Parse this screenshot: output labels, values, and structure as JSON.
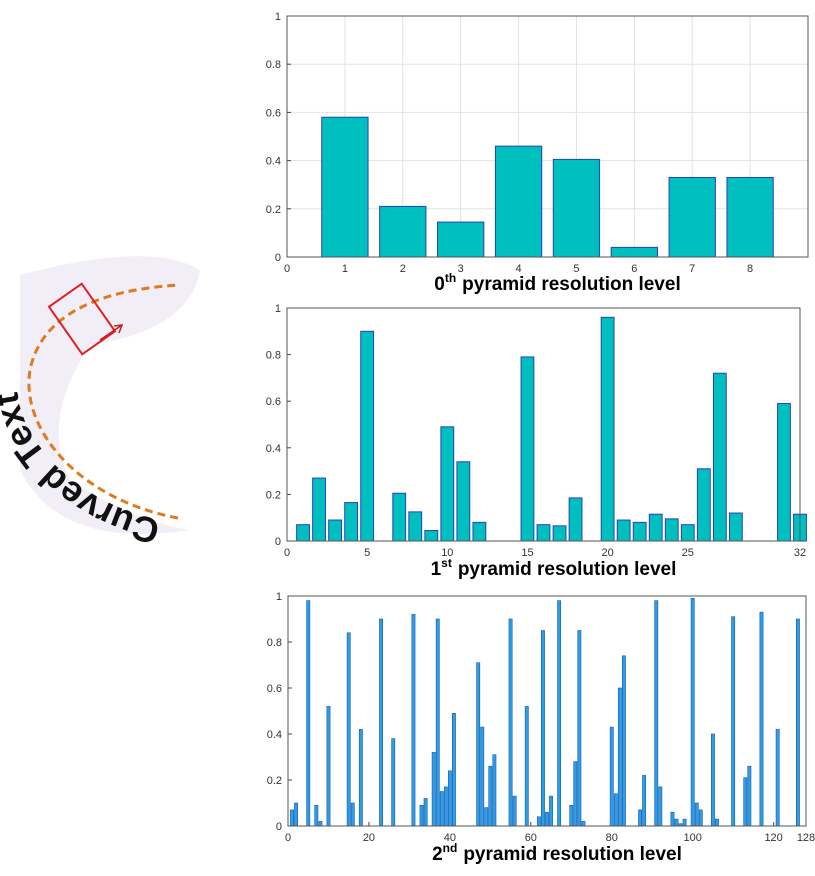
{
  "illustration": {
    "text": "Curved Text"
  },
  "chart_data": [
    {
      "type": "bar",
      "title_level": "0",
      "title_suffix": "th",
      "title": "pyramid resolution level",
      "x": [
        1,
        2,
        3,
        4,
        5,
        6,
        7,
        8
      ],
      "values": [
        0.58,
        0.21,
        0.145,
        0.46,
        0.405,
        0.04,
        0.33,
        0.33
      ],
      "color": "#00bfbf",
      "edgecolor": "#2b3fbf",
      "xlim": [
        0,
        9
      ],
      "xticks": [
        0,
        1,
        2,
        3,
        4,
        5,
        6,
        7,
        8
      ],
      "ylim": [
        0,
        1
      ],
      "yticks": [
        0,
        0.2,
        0.4,
        0.6,
        0.8,
        1
      ],
      "grid": true
    },
    {
      "type": "bar",
      "title_level": "1",
      "title_suffix": "st",
      "title": "pyramid resolution level",
      "x": [
        1,
        2,
        3,
        4,
        5,
        6,
        7,
        8,
        9,
        10,
        11,
        12,
        13,
        14,
        15,
        16,
        17,
        18,
        19,
        20,
        21,
        22,
        23,
        24,
        25,
        26,
        27,
        28,
        29,
        30,
        31,
        32
      ],
      "values": [
        0.07,
        0.27,
        0.09,
        0.165,
        0.9,
        0,
        0.205,
        0.125,
        0.045,
        0.49,
        0.34,
        0.08,
        0,
        0,
        0.79,
        0.07,
        0.065,
        0.185,
        0,
        0.96,
        0.09,
        0.08,
        0.115,
        0.095,
        0.07,
        0.31,
        0.72,
        0.12,
        0,
        0,
        0.59,
        0.115
      ],
      "color": "#00bfbf",
      "edgecolor": "#2b3fbf",
      "xlim": [
        0,
        32
      ],
      "xticks": [
        0,
        5,
        10,
        15,
        20,
        25,
        32
      ],
      "ylim": [
        0,
        1
      ],
      "yticks": [
        0,
        0.2,
        0.4,
        0.6,
        0.8,
        1
      ],
      "grid": false
    },
    {
      "type": "bar",
      "title_level": "2",
      "title_suffix": "nd",
      "title": "pyramid resolution level",
      "x": [
        1,
        2,
        3,
        4,
        5,
        6,
        7,
        8,
        9,
        10,
        11,
        12,
        13,
        14,
        15,
        16,
        17,
        18,
        19,
        20,
        21,
        22,
        23,
        24,
        25,
        26,
        27,
        28,
        29,
        30,
        31,
        32,
        33,
        34,
        35,
        36,
        37,
        38,
        39,
        40,
        41,
        42,
        43,
        44,
        45,
        46,
        47,
        48,
        49,
        50,
        51,
        52,
        53,
        54,
        55,
        56,
        57,
        58,
        59,
        60,
        61,
        62,
        63,
        64,
        65,
        66,
        67,
        68,
        69,
        70,
        71,
        72,
        73,
        74,
        75,
        76,
        77,
        78,
        79,
        80,
        81,
        82,
        83,
        84,
        85,
        86,
        87,
        88,
        89,
        90,
        91,
        92,
        93,
        94,
        95,
        96,
        97,
        98,
        99,
        100,
        101,
        102,
        103,
        104,
        105,
        106,
        107,
        108,
        109,
        110,
        111,
        112,
        113,
        114,
        115,
        116,
        117,
        118,
        119,
        120,
        121,
        122,
        123,
        124,
        125,
        126,
        127,
        128
      ],
      "values": [
        0.07,
        0.1,
        0,
        0,
        0.98,
        0,
        0.09,
        0.02,
        0,
        0.52,
        0,
        0,
        0,
        0,
        0.84,
        0.1,
        0,
        0.42,
        0,
        0,
        0,
        0,
        0.9,
        0,
        0,
        0.38,
        0,
        0,
        0,
        0,
        0.92,
        0,
        0.09,
        0.12,
        0,
        0.32,
        0.9,
        0.15,
        0.17,
        0.24,
        0.49,
        0,
        0,
        0,
        0,
        0,
        0.71,
        0.43,
        0.08,
        0.26,
        0.31,
        0,
        0,
        0,
        0.9,
        0.13,
        0,
        0,
        0.52,
        0,
        0,
        0.04,
        0.85,
        0.06,
        0.13,
        0,
        0.98,
        0,
        0,
        0.09,
        0.28,
        0.85,
        0.02,
        0,
        0,
        0,
        0,
        0,
        0,
        0.43,
        0.14,
        0.6,
        0.74,
        0,
        0,
        0,
        0.07,
        0.22,
        0,
        0,
        0.98,
        0.17,
        0,
        0,
        0.06,
        0.03,
        0.01,
        0.03,
        0,
        0.99,
        0.1,
        0.07,
        0,
        0,
        0.4,
        0.03,
        0,
        0,
        0,
        0.91,
        0,
        0,
        0.21,
        0.26,
        0,
        0,
        0.93,
        0,
        0,
        0,
        0.42,
        0,
        0,
        0,
        0,
        0.9,
        0,
        0
      ],
      "color": "#2a9fe3",
      "edgecolor": "#1d55b8",
      "xlim": [
        0,
        128
      ],
      "xticks": [
        0,
        20,
        40,
        60,
        80,
        100,
        120,
        128
      ],
      "ylim": [
        0,
        1
      ],
      "yticks": [
        0,
        0.2,
        0.4,
        0.6,
        0.8,
        1
      ],
      "grid": false
    }
  ]
}
